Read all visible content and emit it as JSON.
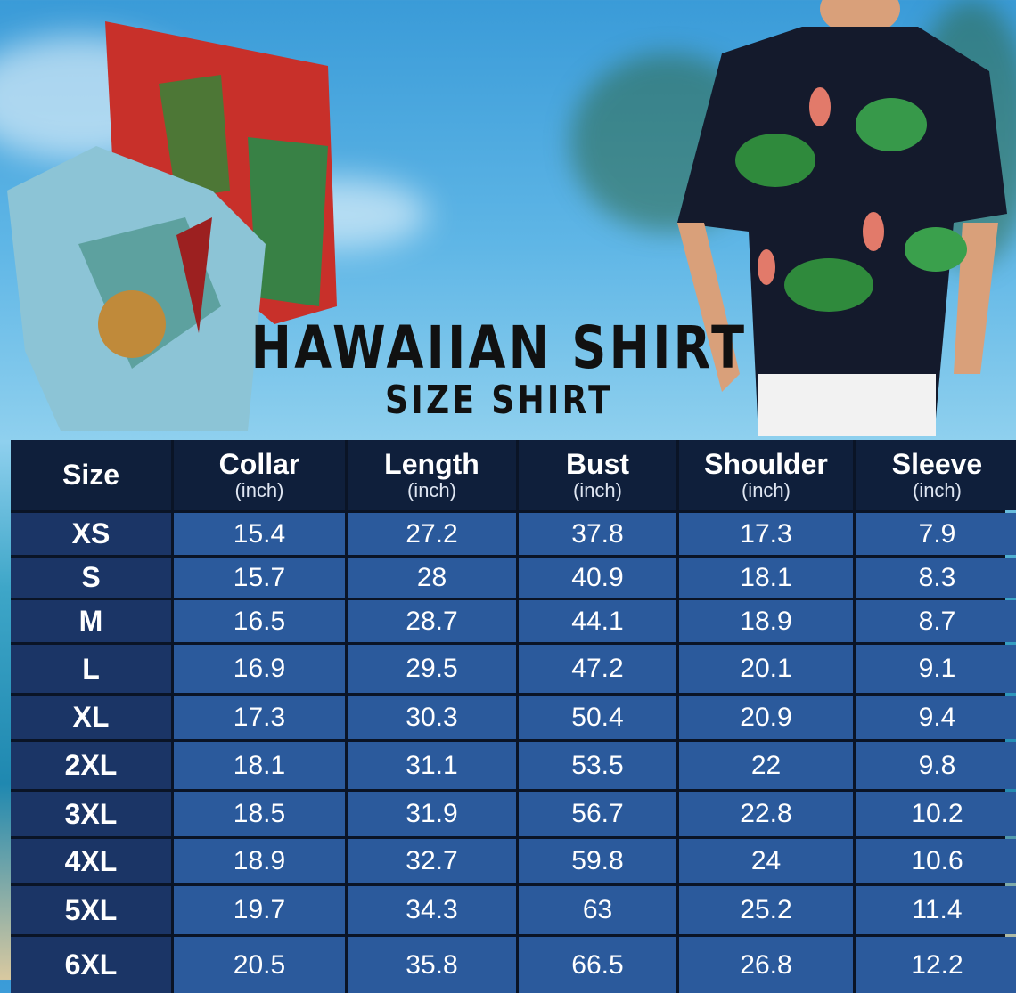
{
  "title": "HAWAIIAN SHIRT",
  "subtitle": "SIZE SHIRT",
  "colors": {
    "header_bg": "#0f1f3b",
    "size_col_bg": "#1b3566",
    "cell_bg": "#2b5a9c",
    "text": "#ffffff",
    "title": "#111111"
  },
  "table": {
    "headers": [
      {
        "label": "Size",
        "unit": ""
      },
      {
        "label": "Collar",
        "unit": "(inch)"
      },
      {
        "label": "Length",
        "unit": "(inch)"
      },
      {
        "label": "Bust",
        "unit": "(inch)"
      },
      {
        "label": "Shoulder",
        "unit": "(inch)"
      },
      {
        "label": "Sleeve",
        "unit": "(inch)"
      }
    ],
    "rows": [
      [
        "XS",
        "15.4",
        "27.2",
        "37.8",
        "17.3",
        "7.9"
      ],
      [
        "S",
        "15.7",
        "28",
        "40.9",
        "18.1",
        "8.3"
      ],
      [
        "M",
        "16.5",
        "28.7",
        "44.1",
        "18.9",
        "8.7"
      ],
      [
        "L",
        "16.9",
        "29.5",
        "47.2",
        "20.1",
        "9.1"
      ],
      [
        "XL",
        "17.3",
        "30.3",
        "50.4",
        "20.9",
        "9.4"
      ],
      [
        "2XL",
        "18.1",
        "31.1",
        "53.5",
        "22",
        "9.8"
      ],
      [
        "3XL",
        "18.5",
        "31.9",
        "56.7",
        "22.8",
        "10.2"
      ],
      [
        "4XL",
        "18.9",
        "32.7",
        "59.8",
        "24",
        "10.6"
      ],
      [
        "5XL",
        "19.7",
        "34.3",
        "63",
        "25.2",
        "11.4"
      ],
      [
        "6XL",
        "20.5",
        "35.8",
        "66.5",
        "26.8",
        "12.2"
      ]
    ]
  }
}
